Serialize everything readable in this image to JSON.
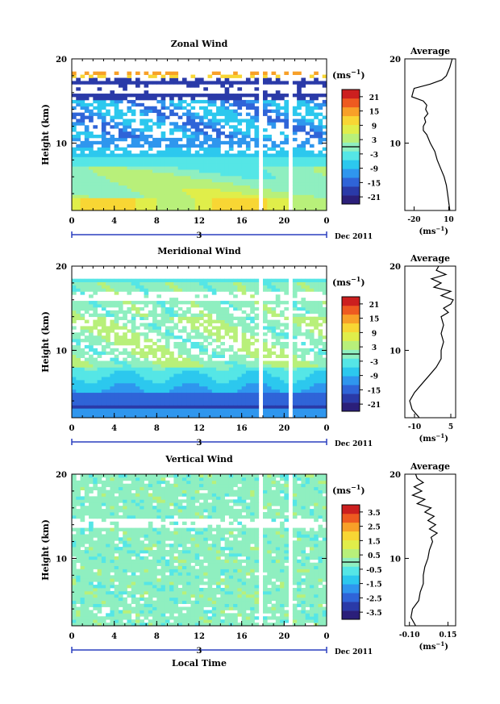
{
  "chart_data": [
    {
      "type": "heatmap",
      "title": "Zonal Wind",
      "ylabel": "Height (km)",
      "ylim": [
        2,
        20
      ],
      "xlim": [
        0,
        24
      ],
      "x_ticks": [
        "0",
        "4",
        "8",
        "12",
        "16",
        "20",
        "0"
      ],
      "y_ticks": [
        "10",
        "20"
      ],
      "date_label": "Dec 2011",
      "day_labels": [
        "3"
      ],
      "colorbar": {
        "unit_label": "(ms",
        "unit_sup": "−1",
        "unit_close": ")",
        "ticks": [
          "-21",
          "-15",
          "-9",
          "-3",
          "3",
          "9",
          "15",
          "21"
        ],
        "range": [
          -24,
          24
        ],
        "zero_line": 0
      },
      "profile": {
        "title": "Average",
        "xticks": [
          "-20",
          "10"
        ],
        "xrange": [
          -28,
          16
        ],
        "xlabel": "(ms",
        "xlabel_sup": "−1",
        "xlabel_close": ")",
        "heights_km": [
          2,
          3,
          4,
          5,
          6,
          7,
          8,
          9,
          10,
          11,
          11.5,
          12,
          12.5,
          13,
          13.5,
          14,
          14.5,
          15,
          15.5,
          16,
          16.5,
          17,
          17.5,
          18,
          19,
          20
        ],
        "values": [
          11,
          10,
          9,
          8,
          6,
          3,
          0,
          -2,
          -6,
          -9,
          -12,
          -12,
          -10,
          -11,
          -8,
          -10,
          -9,
          -12,
          -22,
          -21,
          -20,
          -6,
          4,
          8,
          11,
          13
        ]
      }
    },
    {
      "type": "heatmap",
      "title": "Meridional Wind",
      "ylabel": "Height (km)",
      "ylim": [
        2,
        20
      ],
      "xlim": [
        0,
        24
      ],
      "x_ticks": [
        "0",
        "4",
        "8",
        "12",
        "16",
        "20",
        "0"
      ],
      "y_ticks": [
        "10",
        "20"
      ],
      "date_label": "Dec 2011",
      "day_labels": [
        "3"
      ],
      "colorbar": {
        "unit_label": "(ms",
        "unit_sup": "−1",
        "unit_close": ")",
        "ticks": [
          "-21",
          "-15",
          "-9",
          "-3",
          "3",
          "9",
          "15",
          "21"
        ],
        "range": [
          -24,
          24
        ],
        "zero_line": 0
      },
      "profile": {
        "title": "Average",
        "xticks": [
          "-10",
          "5"
        ],
        "xrange": [
          -14,
          7
        ],
        "xlabel": "(ms",
        "xlabel_sup": "−1",
        "xlabel_close": ")",
        "heights_km": [
          2,
          3,
          4,
          5,
          6,
          7,
          8,
          9,
          10,
          11,
          12,
          13,
          14,
          14.5,
          15,
          15.5,
          16,
          16.5,
          17,
          17.5,
          18,
          18.5,
          19,
          19.5,
          20
        ],
        "values": [
          -8,
          -11,
          -12,
          -10,
          -7,
          -4,
          -1,
          1,
          1,
          2,
          1,
          2,
          1,
          4,
          2,
          5,
          6,
          1,
          5,
          -2,
          1,
          -3,
          3,
          -1,
          0
        ]
      }
    },
    {
      "type": "heatmap",
      "title": "Vertical Wind",
      "ylabel": "Height (km)",
      "xlabel": "Local Time",
      "ylim": [
        2,
        20
      ],
      "xlim": [
        0,
        24
      ],
      "x_ticks": [
        "0",
        "4",
        "8",
        "12",
        "16",
        "20",
        "0"
      ],
      "y_ticks": [
        "10",
        "20"
      ],
      "date_label": "Dec 2011",
      "day_labels": [
        "3"
      ],
      "colorbar": {
        "unit_label": "(ms",
        "unit_sup": "−1",
        "unit_close": ")",
        "ticks": [
          "-3.5",
          "-2.5",
          "-1.5",
          "-0.5",
          "0.5",
          "1.5",
          "2.5",
          "3.5"
        ],
        "range": [
          -4,
          4
        ],
        "zero_line": 0
      },
      "profile": {
        "title": "Average",
        "xticks": [
          "-0.10",
          "0.15"
        ],
        "xrange": [
          -0.13,
          0.2
        ],
        "xlabel": "(ms",
        "xlabel_sup": "−1",
        "xlabel_close": ")",
        "heights_km": [
          2,
          3,
          4,
          5,
          6,
          7,
          8,
          9,
          10,
          11,
          12,
          12.5,
          13,
          13.5,
          14,
          14.5,
          15,
          15.5,
          16,
          16.5,
          17,
          17.5,
          18,
          18.5,
          19,
          19.5,
          20
        ],
        "values": [
          -0.06,
          -0.09,
          -0.08,
          -0.04,
          -0.03,
          -0.01,
          -0.01,
          0.0,
          0.02,
          0.03,
          0.05,
          0.04,
          0.08,
          0.03,
          0.07,
          0.02,
          0.06,
          0.0,
          0.04,
          -0.05,
          0.0,
          -0.08,
          -0.02,
          -0.07,
          -0.01,
          -0.05,
          -0.06
        ]
      }
    }
  ],
  "colors": {
    "palette": [
      "#2b1f7a",
      "#2a3aa8",
      "#2f64d8",
      "#2f96ee",
      "#2cc8ee",
      "#55e6e6",
      "#8fefc0",
      "#b8f07a",
      "#e0ee4a",
      "#f8d634",
      "#f8a028",
      "#ee5a20",
      "#cc1f1f"
    ],
    "axis": "#000000",
    "timeline": "#2a3fbf"
  }
}
